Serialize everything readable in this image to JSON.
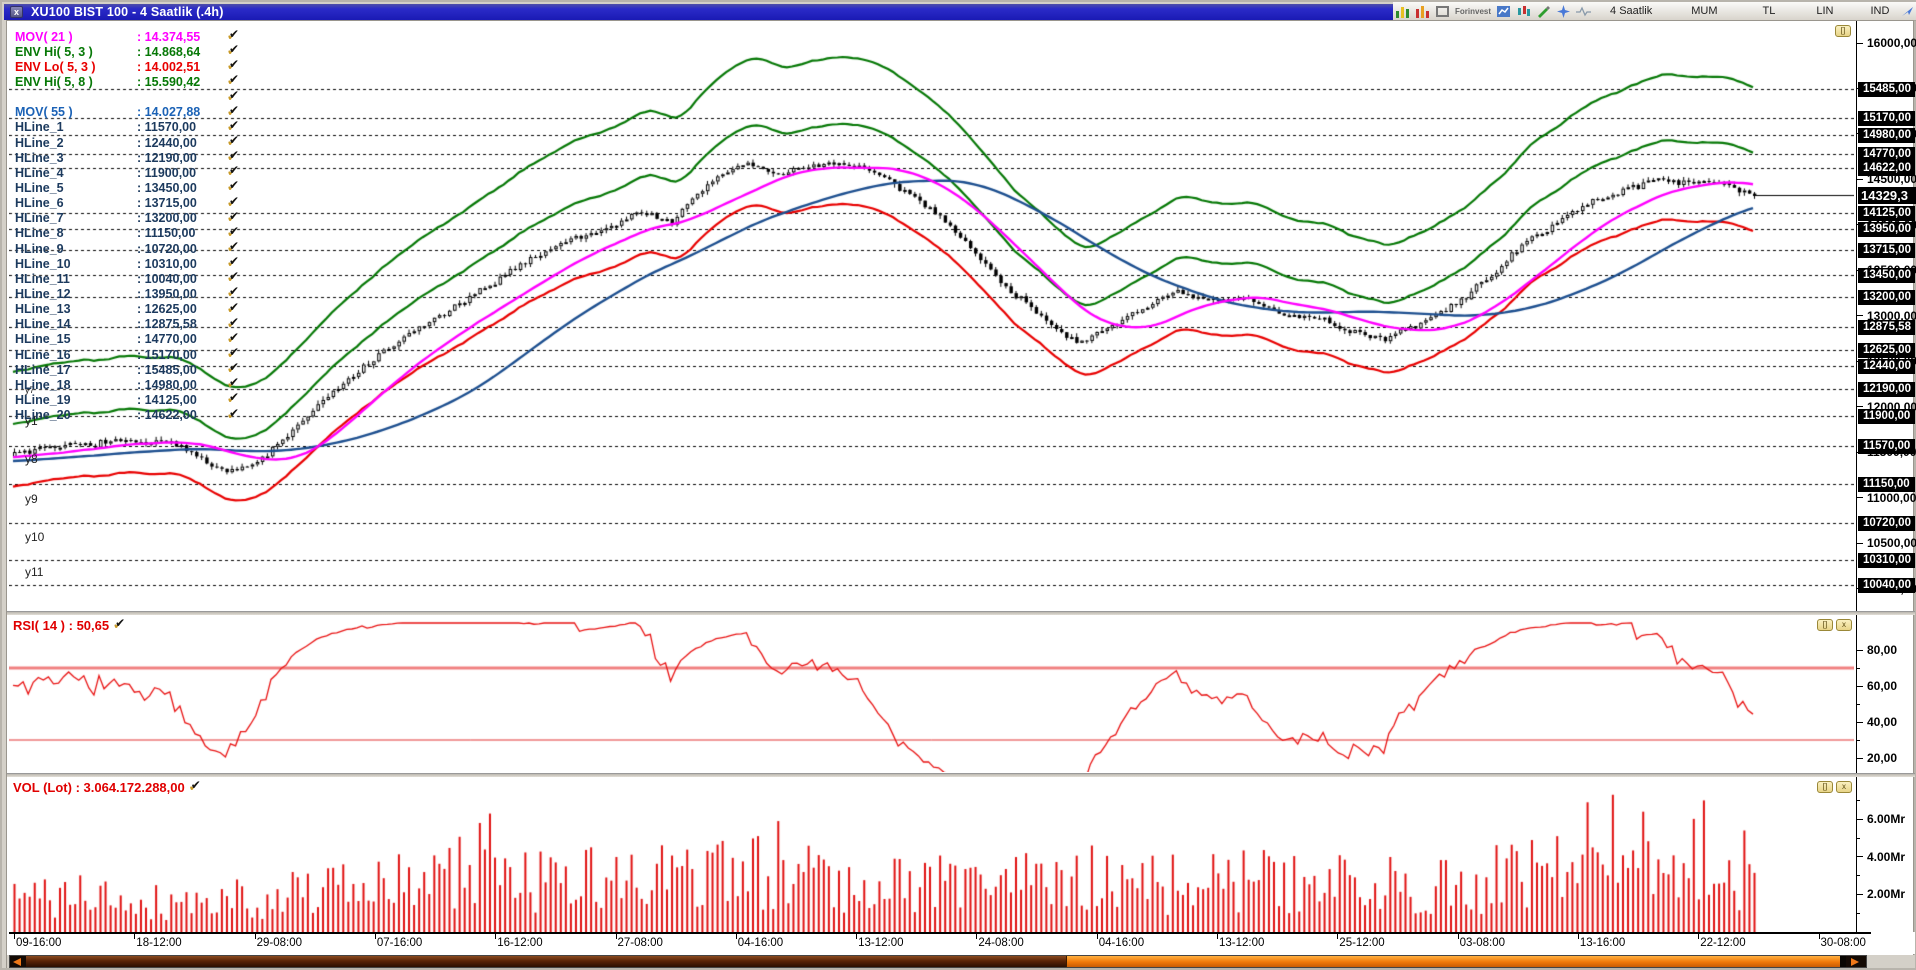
{
  "window": {
    "title": "XU100 BIST 100 - 4 Saatlik (.4h)",
    "close_glyph": "x"
  },
  "toolbar": {
    "brand": "Forinvest",
    "icons": [
      "chart-bars-green-icon",
      "chart-bars-red-icon",
      "window-gray-icon",
      "chart-blue-icon",
      "candles-teal-icon",
      "pencil-green-icon",
      "star-blue-icon",
      "wave-line-icon",
      "arrow-blue-icon",
      "tools-icon"
    ],
    "labels": [
      "4 Saatlik",
      "MUM",
      "TL",
      "LIN",
      "IND"
    ],
    "window_buttons": [
      "-",
      "-",
      "+",
      "x"
    ]
  },
  "legend": {
    "rows": [
      {
        "label": "MOV( 21 )",
        "value": ": 14.374,55",
        "color": "#FF00FF"
      },
      {
        "label": "ENV Hi( 5, 3 )",
        "value": ": 14.868,64",
        "color": "#067806"
      },
      {
        "label": "ENV Lo( 5, 3 )",
        "value": ": 14.002,51",
        "color": "#E80000"
      },
      {
        "label": "ENV Hi( 5, 8 )",
        "value": ": 15.590,42",
        "color": "#067806"
      },
      {
        "label": "",
        "value": "",
        "color": "#000000"
      },
      {
        "label": "MOV( 55 )",
        "value": ": 14.027,88",
        "color": "#1B62B6"
      },
      {
        "label": "HLine_1",
        "value": ": 11570,00",
        "color": "#1C3A5E"
      },
      {
        "label": "HLine_2",
        "value": ": 12440,00",
        "color": "#1C3A5E"
      },
      {
        "label": "HLine_3",
        "value": ": 12190,00",
        "color": "#1C3A5E"
      },
      {
        "label": "HLine_4",
        "value": ": 11900,00",
        "color": "#1C3A5E"
      },
      {
        "label": "HLine_5",
        "value": ": 13450,00",
        "color": "#1C3A5E"
      },
      {
        "label": "HLine_6",
        "value": ": 13715,00",
        "color": "#1C3A5E"
      },
      {
        "label": "HLine_7",
        "value": ": 13200,00",
        "color": "#1C3A5E"
      },
      {
        "label": "HLine_8",
        "value": ": 11150,00",
        "color": "#1C3A5E"
      },
      {
        "label": "HLine_9",
        "value": ": 10720,00",
        "color": "#1C3A5E"
      },
      {
        "label": "HLine_10",
        "value": ": 10310,00",
        "color": "#1C3A5E"
      },
      {
        "label": "HLine_11",
        "value": ": 10040,00",
        "color": "#1C3A5E"
      },
      {
        "label": "HLine_12",
        "value": ": 13950,00",
        "color": "#1C3A5E"
      },
      {
        "label": "HLine_13",
        "value": ": 12625,00",
        "color": "#1C3A5E"
      },
      {
        "label": "HLine_14",
        "value": ": 12875,58",
        "color": "#1C3A5E"
      },
      {
        "label": "HLine_15",
        "value": ": 14770,00",
        "color": "#1C3A5E"
      },
      {
        "label": "HLine_16",
        "value": ": 15170,00",
        "color": "#1C3A5E"
      },
      {
        "label": "HLine_17",
        "value": ": 15485,00",
        "color": "#1C3A5E"
      },
      {
        "label": "HLine_18",
        "value": ": 14980,00",
        "color": "#1C3A5E"
      },
      {
        "label": "HLine_19",
        "value": ": 14125,00",
        "color": "#1C3A5E"
      },
      {
        "label": "HLine_20",
        "value": ": 14622,00",
        "color": "#1C3A5E"
      }
    ]
  },
  "rsi_label": "RSI( 14 ) : 50,65",
  "vol_label": "VOL (Lot) : 3.064.172.288,00",
  "panel_button_glyphs": {
    "restore": "[]",
    "close": "x"
  },
  "chart_data": {
    "type": "candlestick",
    "symbol": "XU100 BIST 100",
    "timeframe": "4 Saatlik (.4h)",
    "x_labels": [
      "09-16:00",
      "18-12:00",
      "29-08:00",
      "07-16:00",
      "16-12:00",
      "27-08:00",
      "04-16:00",
      "13-12:00",
      "24-08:00",
      "04-16:00",
      "13-12:00",
      "25-12:00",
      "03-08:00",
      "13-16:00",
      "22-12:00",
      "30-08:00"
    ],
    "price_panel": {
      "ylim": [
        10000,
        16200
      ],
      "yticks": [
        16000,
        15500,
        15000,
        14500,
        14000,
        13500,
        13000,
        12500,
        12000,
        11500,
        11000,
        10500,
        10000
      ],
      "ytick_format_example": "16000,00",
      "hlines": [
        11570,
        12440,
        12190,
        11900,
        13450,
        13715,
        13200,
        11150,
        10720,
        10310,
        10040,
        13950,
        12625,
        12875.58,
        14770,
        15170,
        15485,
        14980,
        14125,
        14622
      ],
      "last_price": 14329.3,
      "last_price_label": "14329,3",
      "close_anchors": [
        [
          0,
          11480
        ],
        [
          0.03,
          11570
        ],
        [
          0.06,
          11620
        ],
        [
          0.09,
          11600
        ],
        [
          0.105,
          11480
        ],
        [
          0.12,
          11300
        ],
        [
          0.135,
          11330
        ],
        [
          0.15,
          11560
        ],
        [
          0.175,
          12020
        ],
        [
          0.2,
          12430
        ],
        [
          0.23,
          12840
        ],
        [
          0.26,
          13170
        ],
        [
          0.29,
          13560
        ],
        [
          0.315,
          13810
        ],
        [
          0.34,
          13960
        ],
        [
          0.36,
          14150
        ],
        [
          0.378,
          14030
        ],
        [
          0.4,
          14480
        ],
        [
          0.42,
          14690
        ],
        [
          0.438,
          14540
        ],
        [
          0.458,
          14660
        ],
        [
          0.478,
          14680
        ],
        [
          0.495,
          14560
        ],
        [
          0.515,
          14330
        ],
        [
          0.535,
          14060
        ],
        [
          0.555,
          13620
        ],
        [
          0.575,
          13230
        ],
        [
          0.595,
          12940
        ],
        [
          0.612,
          12670
        ],
        [
          0.63,
          12890
        ],
        [
          0.65,
          13110
        ],
        [
          0.668,
          13250
        ],
        [
          0.688,
          13160
        ],
        [
          0.708,
          13190
        ],
        [
          0.728,
          13020
        ],
        [
          0.748,
          12990
        ],
        [
          0.768,
          12830
        ],
        [
          0.788,
          12750
        ],
        [
          0.808,
          12920
        ],
        [
          0.828,
          13120
        ],
        [
          0.848,
          13440
        ],
        [
          0.868,
          13790
        ],
        [
          0.888,
          14060
        ],
        [
          0.908,
          14260
        ],
        [
          0.928,
          14410
        ],
        [
          0.948,
          14520
        ],
        [
          0.963,
          14440
        ],
        [
          0.978,
          14500
        ],
        [
          1,
          14329.3
        ]
      ],
      "overlays": [
        {
          "name": "MOV(21)",
          "type": "sma",
          "period": 21,
          "color": "#FF00FF",
          "last": 14374.55
        },
        {
          "name": "MOV(55)",
          "type": "sma",
          "period": 55,
          "color": "#1D4F8F",
          "last": 14027.88
        },
        {
          "name": "ENV Hi(5,3)",
          "type": "envelope",
          "period": 5,
          "pct": 3,
          "side": "hi",
          "color": "#067806",
          "last": 14868.64
        },
        {
          "name": "ENV Lo(5,3)",
          "type": "envelope",
          "period": 5,
          "pct": 3,
          "side": "lo",
          "color": "#E80000",
          "last": 14002.51
        },
        {
          "name": "ENV Hi(5,8)",
          "type": "envelope",
          "period": 5,
          "pct": 8,
          "side": "hi",
          "color": "#067806",
          "last": 15590.42
        }
      ],
      "region_labels": [
        {
          "label": "y7",
          "price": 12105,
          "small": true
        },
        {
          "label": "y1",
          "price": 11790
        },
        {
          "label": "y8",
          "price": 11370
        },
        {
          "label": "y9",
          "price": 10930
        },
        {
          "label": "y10",
          "price": 10515
        },
        {
          "label": "y11",
          "price": 10130
        }
      ]
    },
    "rsi_panel": {
      "name": "RSI(14)",
      "period": 14,
      "last": 50.65,
      "ylim": [
        0,
        100
      ],
      "yticks": [
        80,
        60,
        40,
        20
      ],
      "ytick_labels": [
        "80,00",
        "60,00",
        "40,00",
        "20,00"
      ],
      "levels": [
        {
          "value": 70,
          "color": "#F08080",
          "width": 3
        },
        {
          "value": 30,
          "color": "#E03030",
          "width": 1
        }
      ]
    },
    "volume_panel": {
      "name": "VOL (Lot)",
      "last_total_label": "3.064.172.288,00",
      "unit": "Mr",
      "yticks": [
        2,
        4,
        6
      ],
      "ytick_labels": [
        "2.00Mr",
        "4.00Mr",
        "6.00Mr"
      ],
      "base_anchors": [
        [
          0,
          2.0
        ],
        [
          0.05,
          2.2
        ],
        [
          0.1,
          1.8
        ],
        [
          0.15,
          2.4
        ],
        [
          0.2,
          2.6
        ],
        [
          0.25,
          3.4
        ],
        [
          0.27,
          4.4
        ],
        [
          0.3,
          3.0
        ],
        [
          0.35,
          3.2
        ],
        [
          0.4,
          3.4
        ],
        [
          0.44,
          3.8
        ],
        [
          0.5,
          3.0
        ],
        [
          0.55,
          3.2
        ],
        [
          0.6,
          2.8
        ],
        [
          0.65,
          3.0
        ],
        [
          0.7,
          3.1
        ],
        [
          0.75,
          2.9
        ],
        [
          0.8,
          3.0
        ],
        [
          0.85,
          3.2
        ],
        [
          0.88,
          3.6
        ],
        [
          0.9,
          4.2
        ],
        [
          0.92,
          4.6
        ],
        [
          0.94,
          4.0
        ],
        [
          0.96,
          4.4
        ],
        [
          0.98,
          3.8
        ],
        [
          1,
          3.2
        ]
      ],
      "spikes": [
        [
          0.272,
          6.3
        ],
        [
          0.44,
          5.9
        ],
        [
          0.62,
          4.6
        ],
        [
          0.905,
          6.9
        ],
        [
          0.918,
          7.3
        ],
        [
          0.935,
          6.4
        ],
        [
          0.97,
          7.0
        ],
        [
          0.995,
          5.4
        ]
      ]
    }
  }
}
